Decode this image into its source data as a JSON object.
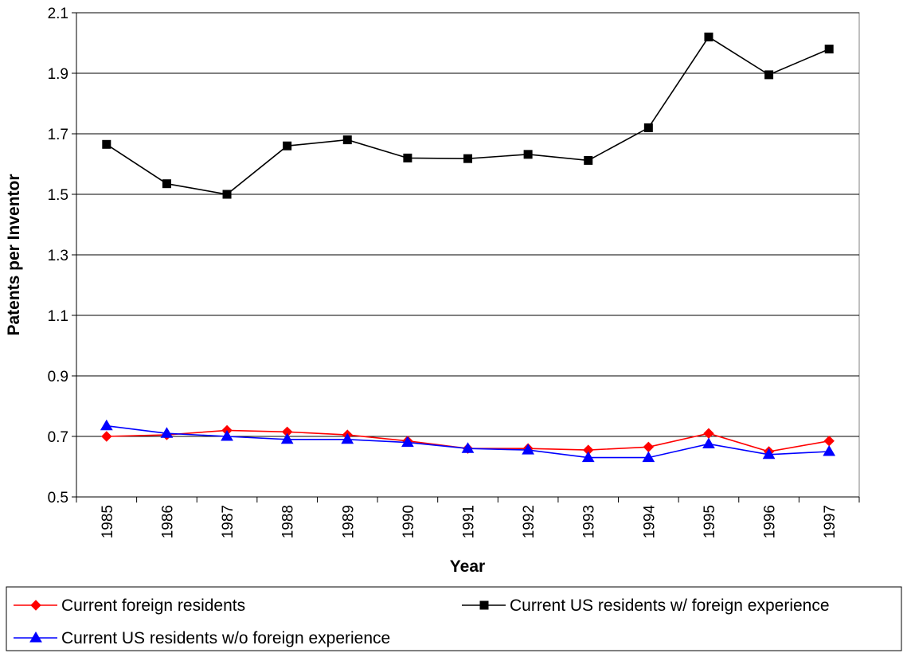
{
  "chart_data": {
    "type": "line",
    "title": "",
    "xlabel": "Year",
    "ylabel": "Patents per Inventor",
    "categories": [
      "1985",
      "1986",
      "1987",
      "1988",
      "1989",
      "1990",
      "1991",
      "1992",
      "1993",
      "1994",
      "1995",
      "1996",
      "1997"
    ],
    "ylim": [
      0.5,
      2.1
    ],
    "yticks": [
      0.5,
      0.7,
      0.9,
      1.1,
      1.3,
      1.5,
      1.7,
      1.9,
      2.1
    ],
    "ytick_labels": [
      "0.5",
      "0.7",
      "0.9",
      "1.1",
      "1.3",
      "1.5",
      "1.7",
      "1.9",
      "2.1"
    ],
    "grid": "horizontal",
    "legend_position": "bottom",
    "series": [
      {
        "name": "Current foreign residents",
        "color": "#ff0000",
        "marker": "diamond",
        "values": [
          0.7,
          0.705,
          0.72,
          0.715,
          0.705,
          0.685,
          0.66,
          0.66,
          0.655,
          0.665,
          0.71,
          0.65,
          0.685
        ]
      },
      {
        "name": "Current US residents w/ foreign experience",
        "color": "#000000",
        "marker": "square",
        "values": [
          1.665,
          1.535,
          1.5,
          1.66,
          1.68,
          1.62,
          1.618,
          1.632,
          1.612,
          1.72,
          2.02,
          1.895,
          1.98
        ]
      },
      {
        "name": "Current US residents w/o foreign experience",
        "color": "#0000ff",
        "marker": "triangle",
        "values": [
          0.735,
          0.71,
          0.7,
          0.69,
          0.69,
          0.68,
          0.66,
          0.655,
          0.63,
          0.63,
          0.675,
          0.64,
          0.65
        ]
      }
    ]
  }
}
